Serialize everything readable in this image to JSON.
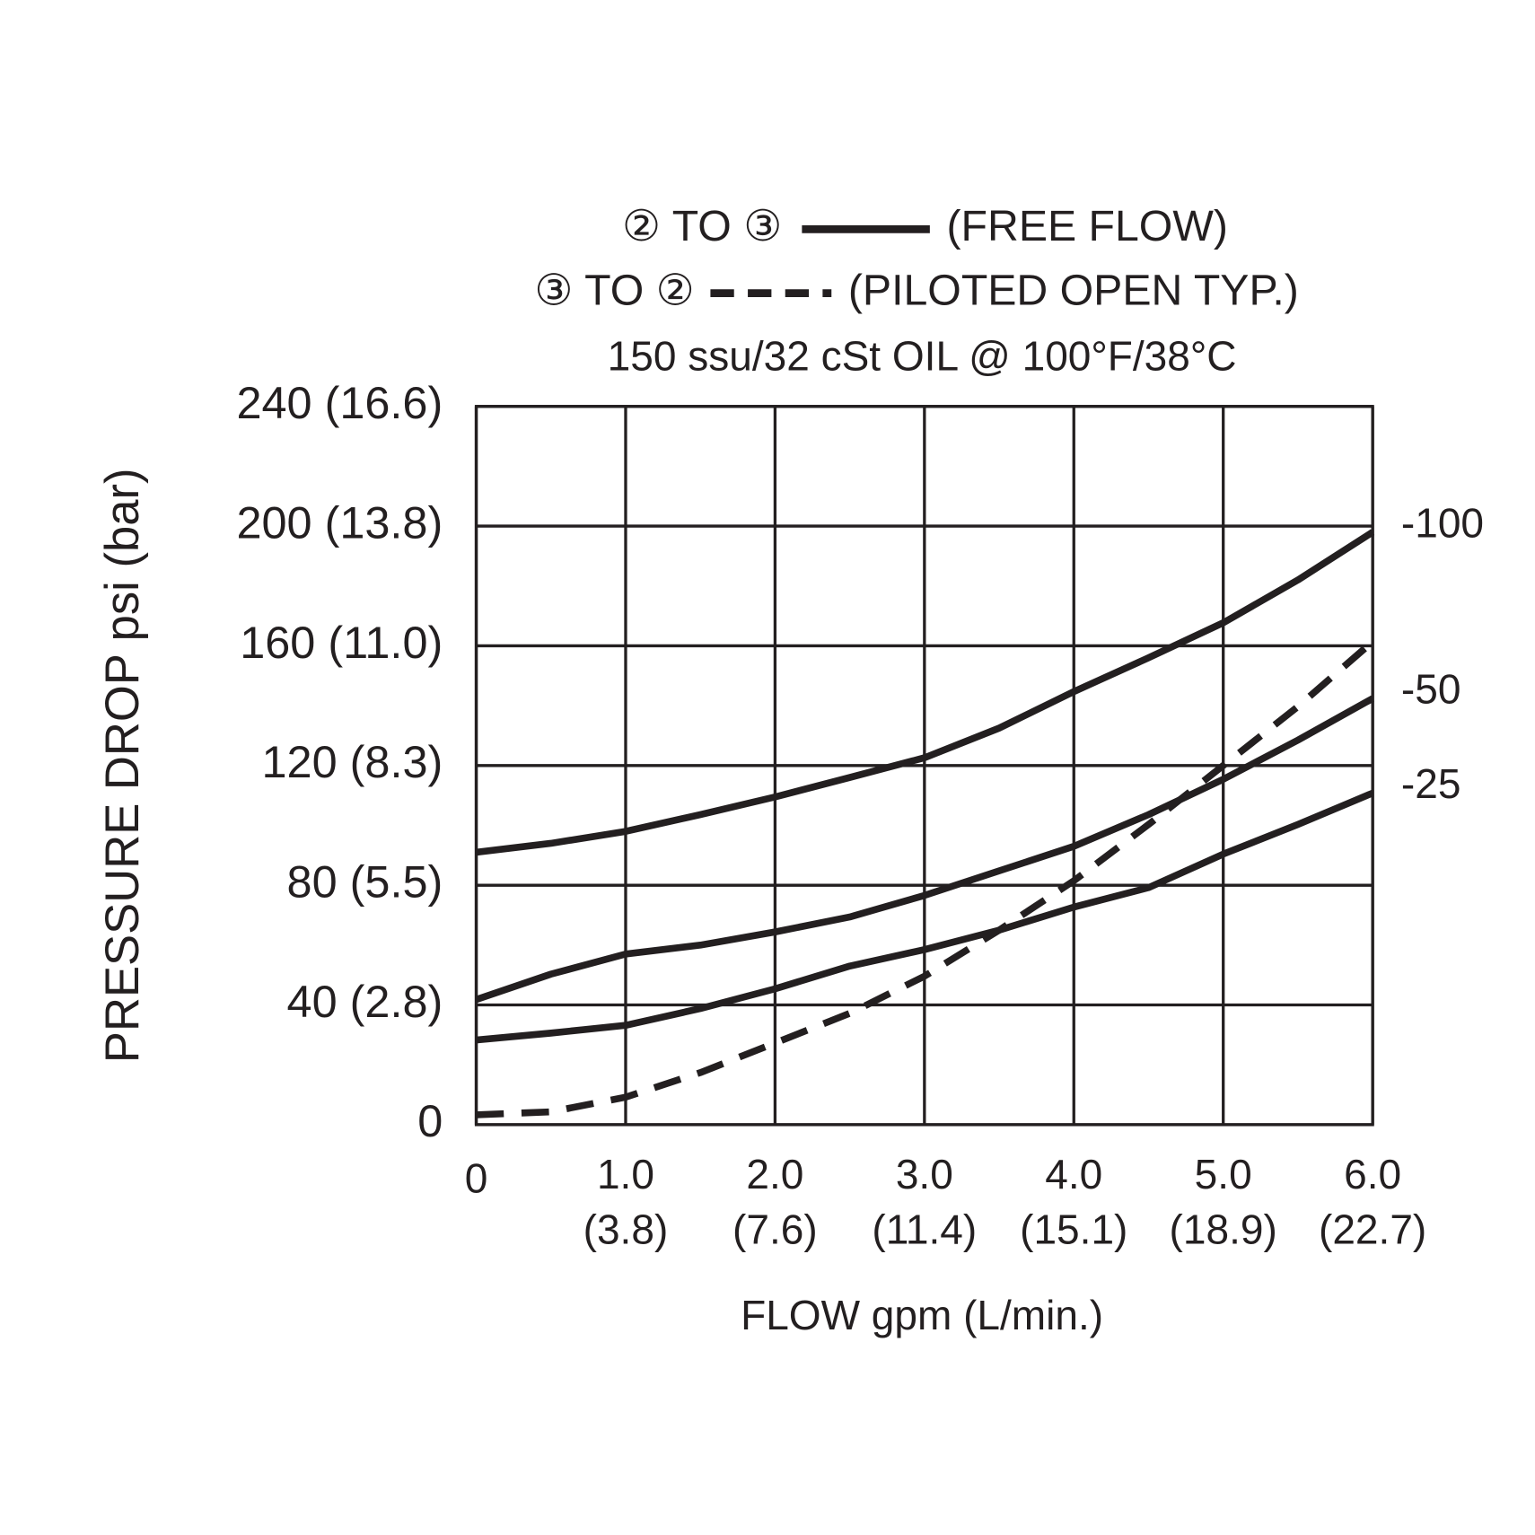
{
  "chart_data": {
    "type": "line",
    "legend": [
      {
        "label": "② TO ③",
        "note": "(FREE FLOW)",
        "style": "solid"
      },
      {
        "label": "③ TO ②",
        "note": "(PILOTED OPEN TYP.)",
        "style": "dashed"
      }
    ],
    "subtitle": "150 ssu/32 cSt OIL @ 100°F/38°C",
    "xlabel": "FLOW gpm (L/min.)",
    "ylabel": "PRESSURE DROP psi (bar)",
    "x": [
      0,
      0.5,
      1.0,
      1.5,
      2.0,
      2.5,
      3.0,
      3.5,
      4.0,
      4.5,
      5.0,
      5.5,
      6.0
    ],
    "series": [
      {
        "name": "-100",
        "style": "solid",
        "color": "#231f20",
        "values": [
          91,
          94,
          98,
          103.6,
          109.5,
          116,
          122.6,
          132.5,
          144.7,
          156,
          167.7,
          182,
          198
        ]
      },
      {
        "name": "-50",
        "style": "solid",
        "color": "#231f20",
        "values": [
          41.8,
          50.3,
          57,
          60,
          64.4,
          69.4,
          76.6,
          84.8,
          93,
          103.6,
          115.4,
          128.5,
          142.4
        ]
      },
      {
        "name": "-25",
        "style": "solid",
        "color": "#231f20",
        "values": [
          28.3,
          30.6,
          33.2,
          38.8,
          45.4,
          53,
          58.5,
          65,
          72.7,
          79.2,
          90.4,
          100.3,
          110.8
        ]
      },
      {
        "style": "dashed",
        "color": "#231f20",
        "values": [
          3.3,
          4.3,
          9.2,
          17.4,
          27.3,
          37.2,
          49.6,
          65,
          81.5,
          100.3,
          120,
          139.7,
          161.4
        ]
      }
    ],
    "xlim": [
      0,
      6
    ],
    "ylim": [
      0,
      240
    ],
    "xticks": [
      0,
      {
        "value": 1,
        "label": "1.0\n(3.8)"
      },
      {
        "value": 2,
        "label": "2.0\n(7.6)"
      },
      {
        "value": 3,
        "label": "3.0\n(11.4)"
      },
      {
        "value": 4,
        "label": "4.0\n(15.1)"
      },
      {
        "value": 5,
        "label": "5.0\n(18.9)"
      },
      {
        "value": 6,
        "label": "6.0\n(22.7)"
      }
    ],
    "yticks": [
      0,
      {
        "value": 40,
        "label": "40 (2.8)"
      },
      {
        "value": 80,
        "label": "80 (5.5)"
      },
      {
        "value": 120,
        "label": "120 (8.3)"
      },
      {
        "value": 160,
        "label": "160 (11.0)"
      },
      {
        "value": 200,
        "label": "200 (13.8)"
      },
      {
        "value": 240,
        "label": "240 (16.6)"
      }
    ],
    "grid": true
  }
}
